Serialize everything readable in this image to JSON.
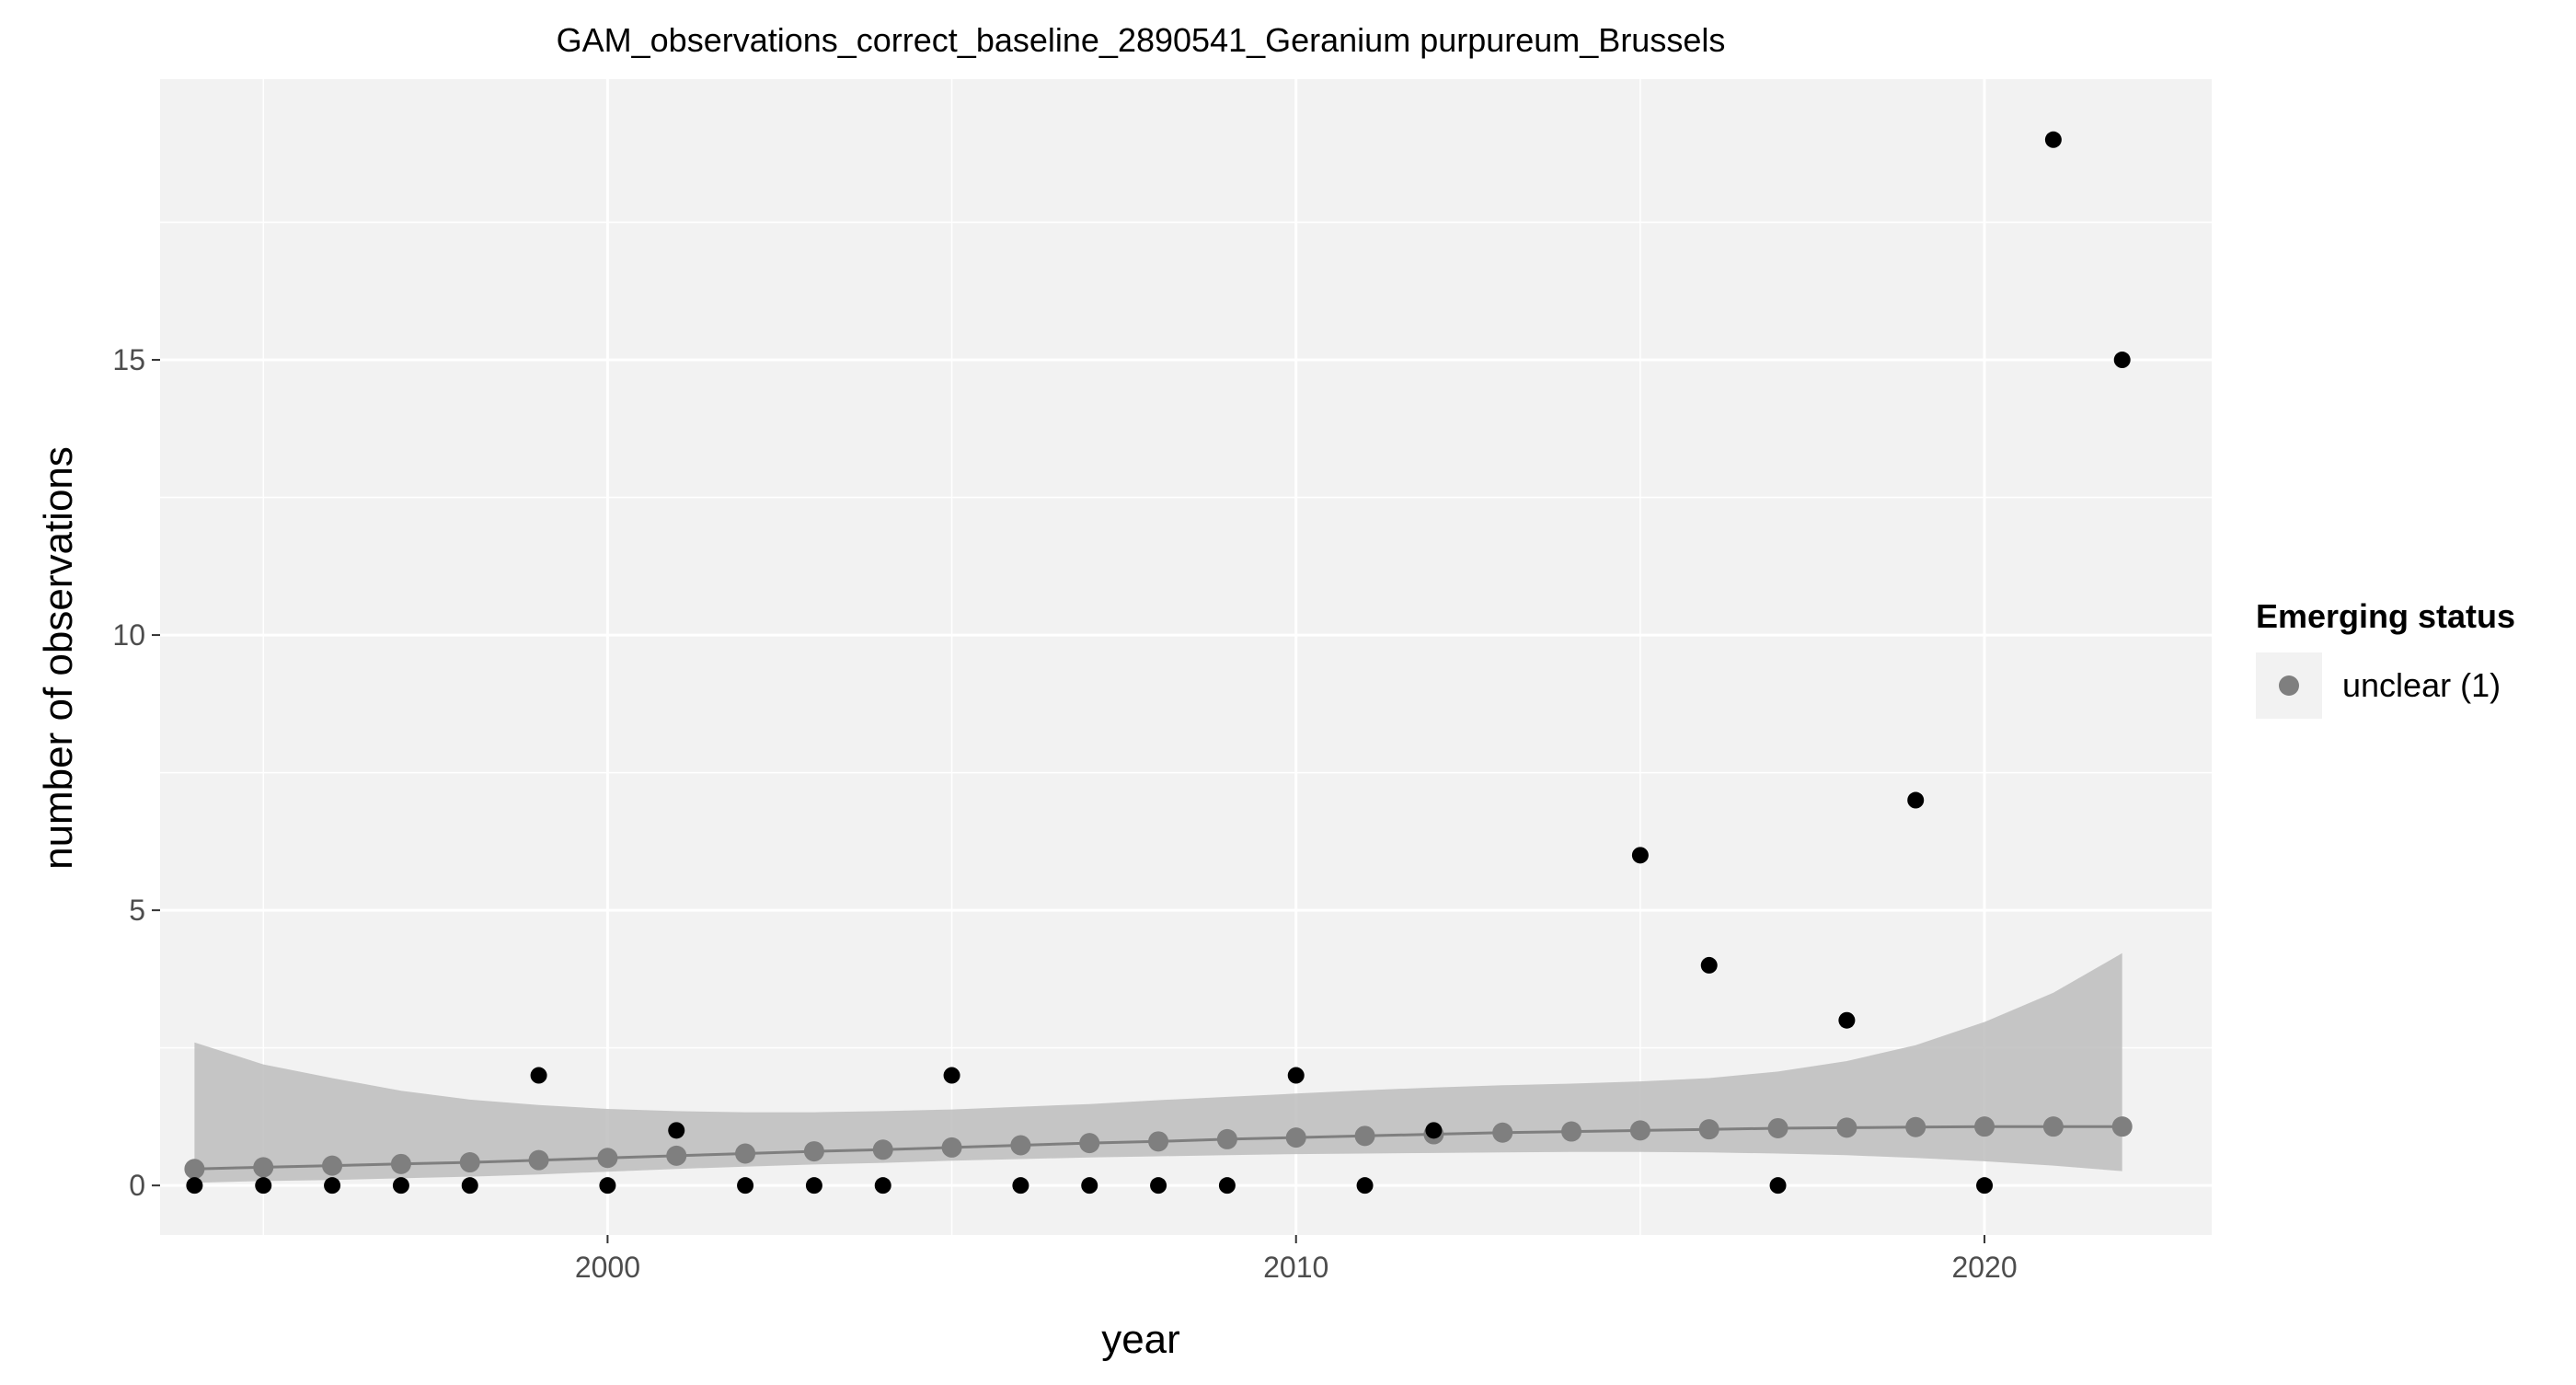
{
  "chart_data": {
    "type": "scatter",
    "title": "GAM_observations_correct_baseline_2890541_Geranium purpureum_Brussels",
    "xlabel": "year",
    "ylabel": "number of observations",
    "xlim": [
      1993.5,
      2023.3
    ],
    "ylim": [
      -0.9,
      20.1
    ],
    "x_ticks": [
      2000,
      2010,
      2020
    ],
    "x_minor_ticks": [
      1995,
      2005,
      2015
    ],
    "y_ticks": [
      0,
      5,
      10,
      15
    ],
    "y_minor_ticks": [
      2.5,
      7.5,
      12.5,
      17.5
    ],
    "grid": true,
    "legend_position": "right",
    "legend_title": "Emerging status",
    "legend_entries": [
      {
        "label": "unclear (1)",
        "color": "#7f7f7f"
      }
    ],
    "observations": {
      "name": "observed",
      "color": "#000000",
      "x": [
        1994,
        1995,
        1996,
        1997,
        1998,
        1999,
        2000,
        2001,
        2002,
        2003,
        2004,
        2005,
        2006,
        2007,
        2008,
        2009,
        2010,
        2011,
        2012,
        2015,
        2016,
        2017,
        2018,
        2019,
        2020,
        2021,
        2022
      ],
      "y": [
        0,
        0,
        0,
        0,
        0,
        2,
        0,
        1,
        0,
        0,
        0,
        2,
        0,
        0,
        0,
        0,
        2,
        0,
        1,
        6,
        4,
        0,
        3,
        7,
        0,
        19,
        15
      ]
    },
    "fit": {
      "name": "GAM fit",
      "status": "unclear (1)",
      "color": "#7f7f7f",
      "x": [
        1994,
        1995,
        1996,
        1997,
        1998,
        1999,
        2000,
        2001,
        2002,
        2003,
        2004,
        2005,
        2006,
        2007,
        2008,
        2009,
        2010,
        2011,
        2012,
        2013,
        2014,
        2015,
        2016,
        2017,
        2018,
        2019,
        2020,
        2021,
        2022
      ],
      "y": [
        0.3,
        0.33,
        0.36,
        0.39,
        0.42,
        0.46,
        0.5,
        0.54,
        0.58,
        0.62,
        0.65,
        0.69,
        0.73,
        0.77,
        0.8,
        0.84,
        0.87,
        0.9,
        0.93,
        0.96,
        0.98,
        1.0,
        1.02,
        1.04,
        1.05,
        1.06,
        1.07,
        1.07,
        1.07
      ],
      "lower": [
        0.05,
        0.08,
        0.1,
        0.13,
        0.16,
        0.2,
        0.25,
        0.3,
        0.34,
        0.38,
        0.41,
        0.45,
        0.48,
        0.51,
        0.53,
        0.55,
        0.57,
        0.58,
        0.59,
        0.6,
        0.61,
        0.61,
        0.6,
        0.58,
        0.55,
        0.5,
        0.44,
        0.36,
        0.26
      ],
      "upper": [
        2.6,
        2.2,
        1.95,
        1.72,
        1.56,
        1.46,
        1.39,
        1.35,
        1.33,
        1.33,
        1.35,
        1.38,
        1.43,
        1.48,
        1.55,
        1.61,
        1.67,
        1.73,
        1.78,
        1.82,
        1.85,
        1.89,
        1.95,
        2.07,
        2.26,
        2.55,
        2.97,
        3.5,
        4.22
      ]
    }
  }
}
